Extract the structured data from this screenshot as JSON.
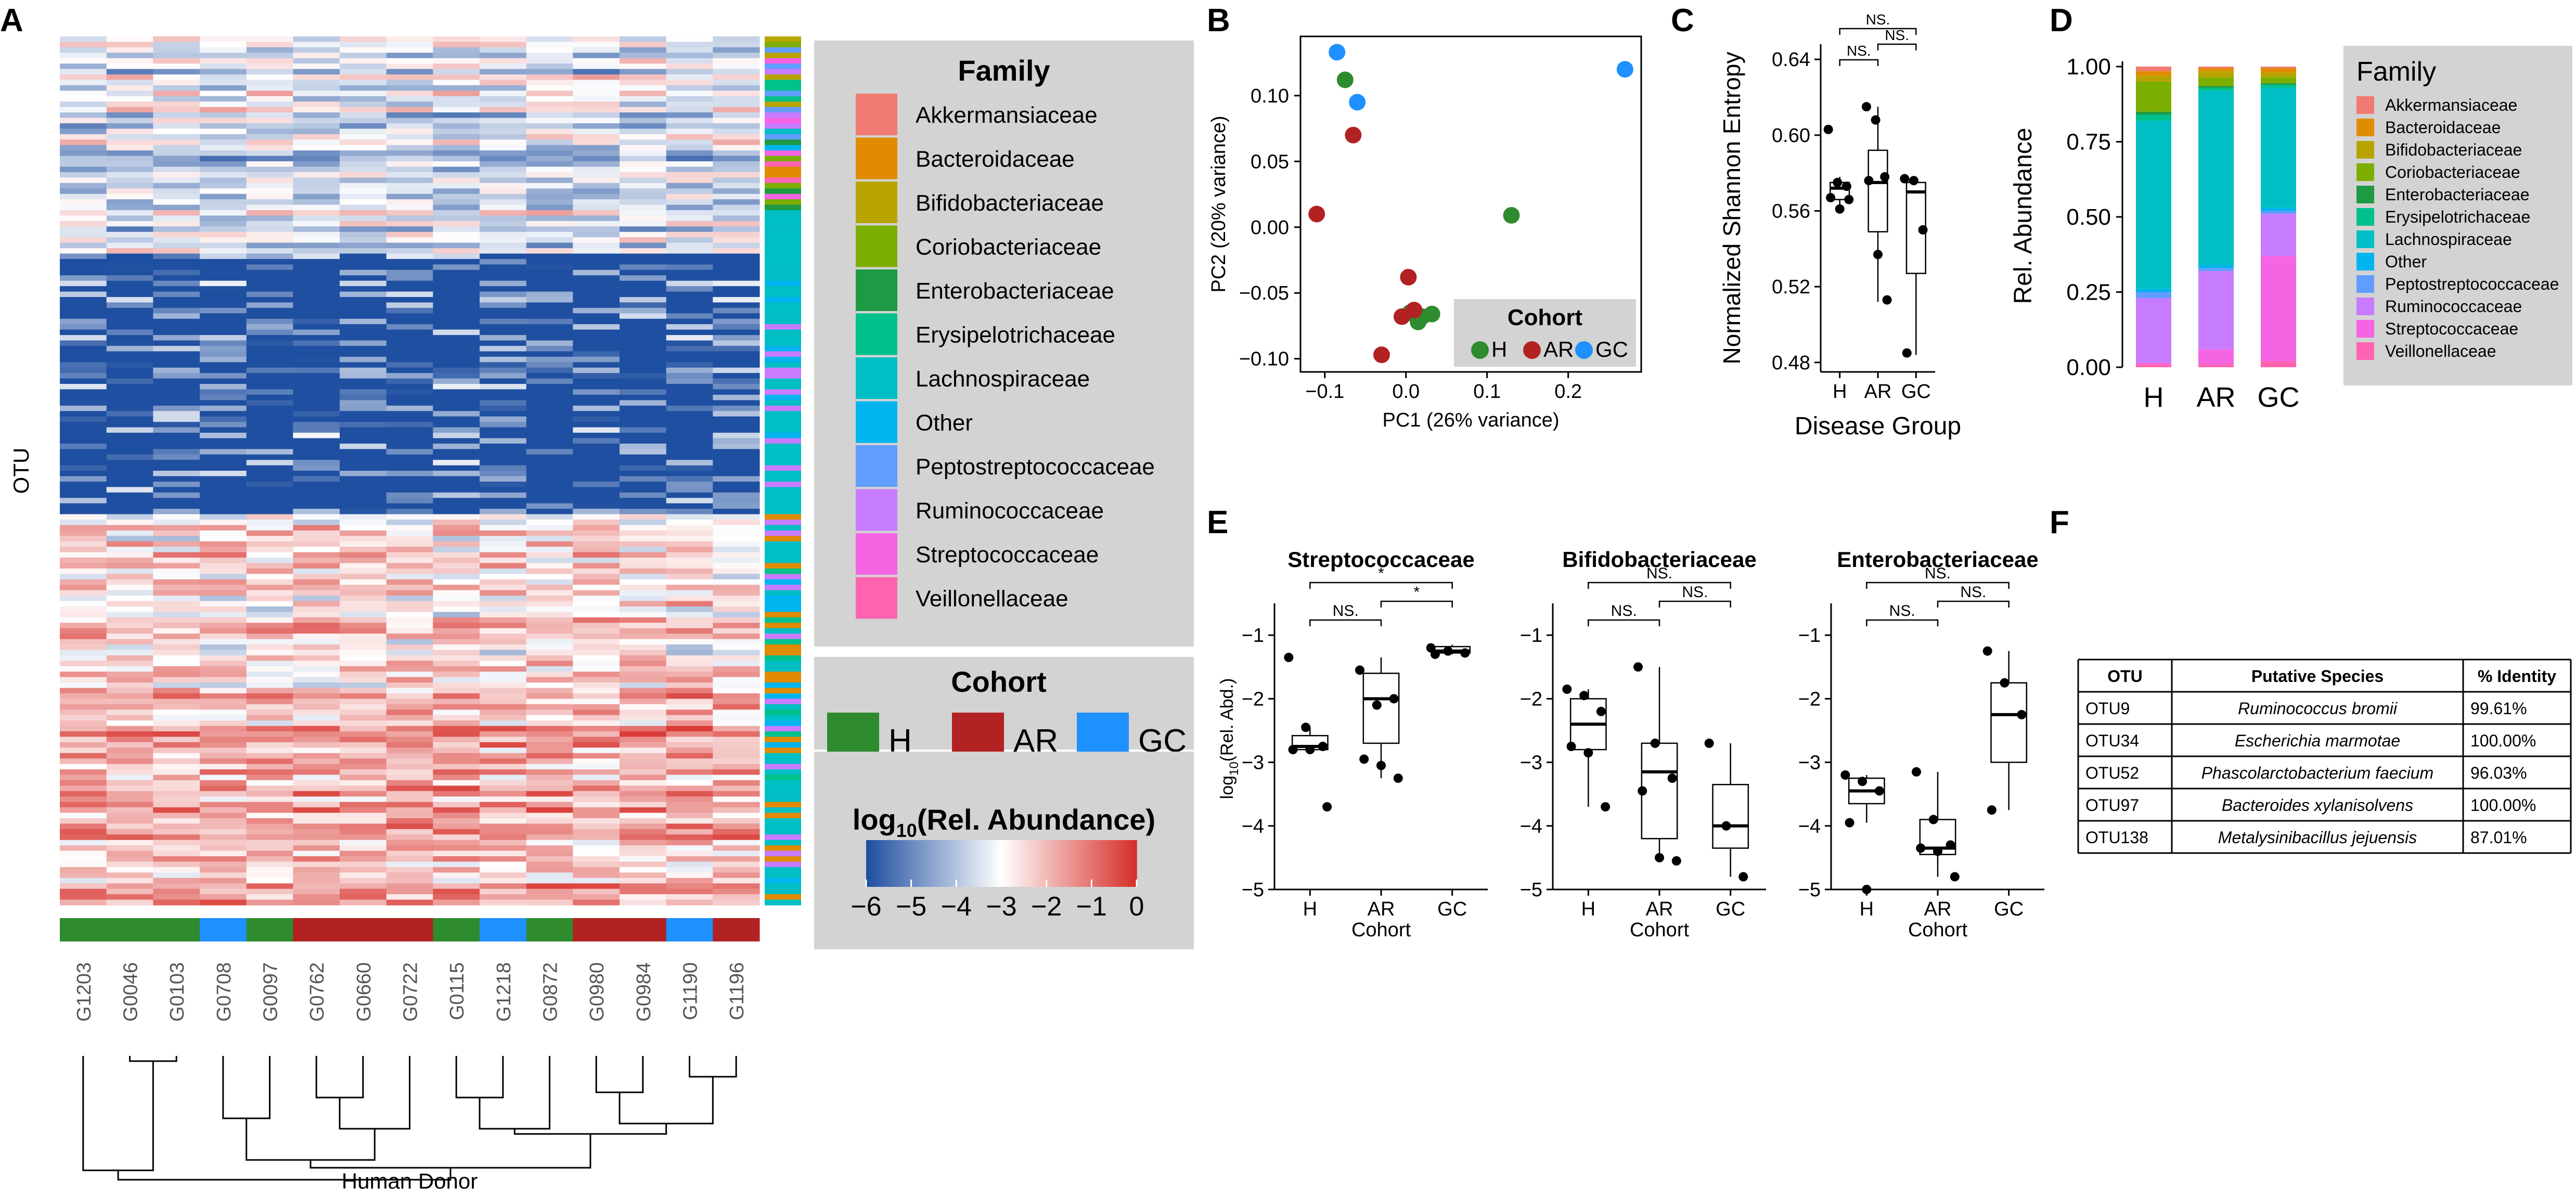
{
  "figure": {
    "panel_letters": [
      "A",
      "B",
      "C",
      "D",
      "E",
      "F"
    ]
  },
  "colors": {
    "cohort": {
      "H": "#2e8b2e",
      "AR": "#b22222",
      "GC": "#1e90ff"
    },
    "family": {
      "Akkermansiaceae": "#f07b72",
      "Bacteroidaceae": "#e08b00",
      "Bifidobacteriaceae": "#b8a400",
      "Coriobacteriaceae": "#7cae00",
      "Enterobacteriaceae": "#1e9a44",
      "Erysipelotrichaceae": "#00c08b",
      "Lachnospiraceae": "#00bfc4",
      "Other": "#00b4f0",
      "Peptostreptococcaceae": "#619cff",
      "Ruminococcaceae": "#c77cff",
      "Streptococcaceae": "#f564e3",
      "Veillonellaceae": "#ff64b0"
    },
    "heat_low": "#1f4fa0",
    "heat_mid": "#ffffff",
    "heat_high": "#d7302a",
    "legend_bg": "#d3d3d3"
  },
  "chart_data": [
    {
      "panel": "A",
      "type": "heatmap",
      "ylabel": "OTU",
      "xlabel": "Human Donor",
      "samples": [
        "G1203",
        "G0046",
        "G0103",
        "G0708",
        "G0097",
        "G0762",
        "G0660",
        "G0722",
        "G0115",
        "G1218",
        "G0872",
        "G0980",
        "G0984",
        "G1190",
        "G1196"
      ],
      "sample_cohorts": [
        "H",
        "H",
        "H",
        "GC",
        "H",
        "AR",
        "AR",
        "AR",
        "H",
        "GC",
        "H",
        "AR",
        "AR",
        "GC",
        "AR"
      ],
      "family_legend": {
        "title": "Family",
        "items": [
          "Akkermansiaceae",
          "Bacteroidaceae",
          "Bifidobacteriaceae",
          "Coriobacteriaceae",
          "Enterobacteriaceae",
          "Erysipelotrichaceae",
          "Lachnospiraceae",
          "Other",
          "Peptostreptococcaceae",
          "Ruminococcaceae",
          "Streptococcaceae",
          "Veillonellaceae"
        ]
      },
      "cohort_legend": {
        "title": "Cohort",
        "items": [
          "H",
          "AR",
          "GC"
        ]
      },
      "color_scale": {
        "title_prefix": "log",
        "title_sub": "10",
        "title_suffix": "(Rel. Abundance)",
        "ticks": [
          "−6",
          "−5",
          "−4",
          "−3",
          "−2",
          "−1",
          "0"
        ],
        "range": [
          -6,
          0
        ]
      }
    },
    {
      "panel": "B",
      "type": "scatter",
      "xlabel": "PC1 (26% variance)",
      "ylabel": "PC2 (20% variance)",
      "xlim": [
        -0.13,
        0.29
      ],
      "ylim": [
        -0.11,
        0.145
      ],
      "xticks": [
        -0.1,
        0.0,
        0.1,
        0.2
      ],
      "xtick_labels": [
        "−0.1",
        "0.0",
        "0.1",
        "0.2"
      ],
      "yticks": [
        -0.1,
        -0.05,
        0.0,
        0.05,
        0.1
      ],
      "ytick_labels": [
        "−0.10",
        "−0.05",
        "0.00",
        "0.05",
        "0.10"
      ],
      "legend": {
        "title": "Cohort",
        "items": [
          "H",
          "AR",
          "GC"
        ]
      },
      "points": [
        {
          "x": -0.085,
          "y": 0.133,
          "g": "GC"
        },
        {
          "x": -0.06,
          "y": 0.095,
          "g": "GC"
        },
        {
          "x": 0.27,
          "y": 0.12,
          "g": "GC"
        },
        {
          "x": -0.075,
          "y": 0.112,
          "g": "H"
        },
        {
          "x": 0.13,
          "y": 0.009,
          "g": "H"
        },
        {
          "x": 0.005,
          "y": -0.065,
          "g": "H"
        },
        {
          "x": 0.02,
          "y": -0.068,
          "g": "H"
        },
        {
          "x": 0.015,
          "y": -0.072,
          "g": "H"
        },
        {
          "x": 0.032,
          "y": -0.066,
          "g": "H"
        },
        {
          "x": -0.065,
          "y": 0.07,
          "g": "AR"
        },
        {
          "x": -0.11,
          "y": 0.01,
          "g": "AR"
        },
        {
          "x": 0.003,
          "y": -0.038,
          "g": "AR"
        },
        {
          "x": -0.005,
          "y": -0.068,
          "g": "AR"
        },
        {
          "x": 0.01,
          "y": -0.063,
          "g": "AR"
        },
        {
          "x": -0.03,
          "y": -0.097,
          "g": "AR"
        }
      ]
    },
    {
      "panel": "C",
      "type": "box",
      "xlabel": "Disease Group",
      "ylabel": "Normalized Shannon Entropy",
      "categories": [
        "H",
        "AR",
        "GC"
      ],
      "ylim": [
        0.475,
        0.648
      ],
      "yticks": [
        0.48,
        0.52,
        0.56,
        0.6,
        0.64
      ],
      "ytick_labels": [
        "0.48",
        "0.52",
        "0.56",
        "0.60",
        "0.64"
      ],
      "boxes": [
        {
          "q1": 0.566,
          "med": 0.572,
          "q3": 0.575,
          "lo": 0.56,
          "hi": 0.578
        },
        {
          "q1": 0.549,
          "med": 0.575,
          "q3": 0.592,
          "lo": 0.512,
          "hi": 0.615
        },
        {
          "q1": 0.527,
          "med": 0.57,
          "q3": 0.575,
          "lo": 0.484,
          "hi": 0.576
        }
      ],
      "points": [
        [
          0.603,
          0.575,
          0.573,
          0.567,
          0.561,
          0.566
        ],
        [
          0.615,
          0.608,
          0.578,
          0.576,
          0.537,
          0.513
        ],
        [
          0.577,
          0.576,
          0.55,
          0.485
        ]
      ],
      "brackets": [
        {
          "a": 0,
          "b": 1,
          "label": "NS.",
          "level": 0
        },
        {
          "a": 1,
          "b": 2,
          "label": "NS.",
          "level": 1
        },
        {
          "a": 0,
          "b": 2,
          "label": "NS.",
          "level": 2
        }
      ]
    },
    {
      "panel": "D",
      "type": "bar",
      "stacked": true,
      "ylabel": "Rel. Abundance",
      "categories": [
        "H",
        "AR",
        "GC"
      ],
      "ylim": [
        0,
        1.0
      ],
      "yticks": [
        0,
        0.25,
        0.5,
        0.75,
        1.0
      ],
      "ytick_labels": [
        "0.00",
        "0.25",
        "0.50",
        "0.75",
        "1.00"
      ],
      "legend_title": "Family",
      "series": [
        {
          "name": "Veillonellaceae",
          "values": [
            0.01,
            0.01,
            0.02
          ]
        },
        {
          "name": "Streptococcaceae",
          "values": [
            0.005,
            0.05,
            0.35
          ]
        },
        {
          "name": "Ruminococcaceae",
          "values": [
            0.215,
            0.26,
            0.14
          ]
        },
        {
          "name": "Peptostreptococcaceae",
          "values": [
            0.02,
            0.01,
            0.01
          ]
        },
        {
          "name": "Other",
          "values": [
            0.01,
            0.01,
            0.01
          ]
        },
        {
          "name": "Lachnospiraceae",
          "values": [
            0.56,
            0.58,
            0.4
          ]
        },
        {
          "name": "Erysipelotrichaceae",
          "values": [
            0.02,
            0.01,
            0.01
          ]
        },
        {
          "name": "Enterobacteriaceae",
          "values": [
            0.01,
            0.005,
            0.005
          ]
        },
        {
          "name": "Coriobacteriaceae",
          "values": [
            0.1,
            0.03,
            0.02
          ]
        },
        {
          "name": "Bifidobacteriaceae",
          "values": [
            0.02,
            0.02,
            0.015
          ]
        },
        {
          "name": "Bacteroidaceae",
          "values": [
            0.015,
            0.01,
            0.015
          ]
        },
        {
          "name": "Akkermansiaceae",
          "values": [
            0.015,
            0.005,
            0.005
          ]
        }
      ]
    },
    {
      "panel": "E",
      "type": "box",
      "ylabel_prefix": "log",
      "ylabel_sub": "10",
      "ylabel_suffix": "(Rel. Abd.)",
      "xlabel": "Cohort",
      "categories": [
        "H",
        "AR",
        "GC"
      ],
      "ylim": [
        -5,
        -0.5
      ],
      "yticks": [
        -5,
        -4,
        -3,
        -2,
        -1
      ],
      "ytick_labels": [
        "−5",
        "−4",
        "−3",
        "−2",
        "−1"
      ],
      "subplots": [
        {
          "title": "Streptococcaceae",
          "boxes": [
            {
              "q1": -2.8,
              "med": -2.75,
              "q3": -2.58,
              "lo": -2.82,
              "hi": -2.45
            },
            {
              "q1": -2.7,
              "med": -2.0,
              "q3": -1.6,
              "lo": -3.25,
              "hi": -1.35
            },
            {
              "q1": -1.28,
              "med": -1.25,
              "q3": -1.18,
              "lo": -1.3,
              "hi": -1.15
            }
          ],
          "points": [
            [
              -1.35,
              -2.45,
              -2.75,
              -2.8,
              -2.8,
              -3.7
            ],
            [
              -1.55,
              -2.1,
              -2.0,
              -2.95,
              -3.05,
              -3.25
            ],
            [
              -1.2,
              -1.25,
              -1.28,
              -1.3
            ]
          ],
          "brackets": [
            {
              "a": 0,
              "b": 1,
              "label": "NS.",
              "level": 0
            },
            {
              "a": 1,
              "b": 2,
              "label": "*",
              "level": 1
            },
            {
              "a": 0,
              "b": 2,
              "label": "*",
              "level": 2
            }
          ]
        },
        {
          "title": "Bifidobacteriaceae",
          "boxes": [
            {
              "q1": -2.8,
              "med": -2.4,
              "q3": -2.0,
              "lo": -3.7,
              "hi": -1.85
            },
            {
              "q1": -4.2,
              "med": -3.15,
              "q3": -2.7,
              "lo": -4.55,
              "hi": -1.5
            },
            {
              "q1": -4.35,
              "med": -4.0,
              "q3": -3.35,
              "lo": -4.8,
              "hi": -2.7
            }
          ],
          "points": [
            [
              -1.85,
              -1.95,
              -2.2,
              -2.75,
              -2.85,
              -3.7
            ],
            [
              -1.5,
              -2.7,
              -3.25,
              -3.45,
              -4.5,
              -4.55
            ],
            [
              -2.7,
              -4.0,
              -4.8
            ]
          ],
          "brackets": [
            {
              "a": 0,
              "b": 1,
              "label": "NS.",
              "level": 0
            },
            {
              "a": 1,
              "b": 2,
              "label": "NS.",
              "level": 1
            },
            {
              "a": 0,
              "b": 2,
              "label": "NS.",
              "level": 2
            }
          ]
        },
        {
          "title": "Enterobacteriaceae",
          "boxes": [
            {
              "q1": -3.65,
              "med": -3.45,
              "q3": -3.25,
              "lo": -3.95,
              "hi": -3.2
            },
            {
              "q1": -4.45,
              "med": -4.35,
              "q3": -3.9,
              "lo": -4.8,
              "hi": -3.15
            },
            {
              "q1": -3.0,
              "med": -2.25,
              "q3": -1.75,
              "lo": -3.75,
              "hi": -1.25
            }
          ],
          "points": [
            [
              -3.2,
              -3.3,
              -3.45,
              -3.95,
              -5.0
            ],
            [
              -3.15,
              -3.9,
              -4.3,
              -4.35,
              -4.4,
              -4.8
            ],
            [
              -1.25,
              -1.75,
              -2.25,
              -3.75
            ]
          ],
          "brackets": [
            {
              "a": 0,
              "b": 1,
              "label": "NS.",
              "level": 0
            },
            {
              "a": 1,
              "b": 2,
              "label": "NS.",
              "level": 1
            },
            {
              "a": 0,
              "b": 2,
              "label": "NS.",
              "level": 2
            }
          ]
        }
      ]
    },
    {
      "panel": "F",
      "type": "table",
      "headers": [
        "OTU",
        "Putative Species",
        "% Identity"
      ],
      "rows": [
        [
          "OTU9",
          "Ruminococcus bromii",
          "99.61%"
        ],
        [
          "OTU34",
          "Escherichia marmotae",
          "100.00%"
        ],
        [
          "OTU52",
          "Phascolarctobacterium faecium",
          "96.03%"
        ],
        [
          "OTU97",
          "Bacteroides xylanisolvens",
          "100.00%"
        ],
        [
          "OTU138",
          "Metalysinibacillus jejuensis",
          "87.01%"
        ]
      ]
    }
  ]
}
